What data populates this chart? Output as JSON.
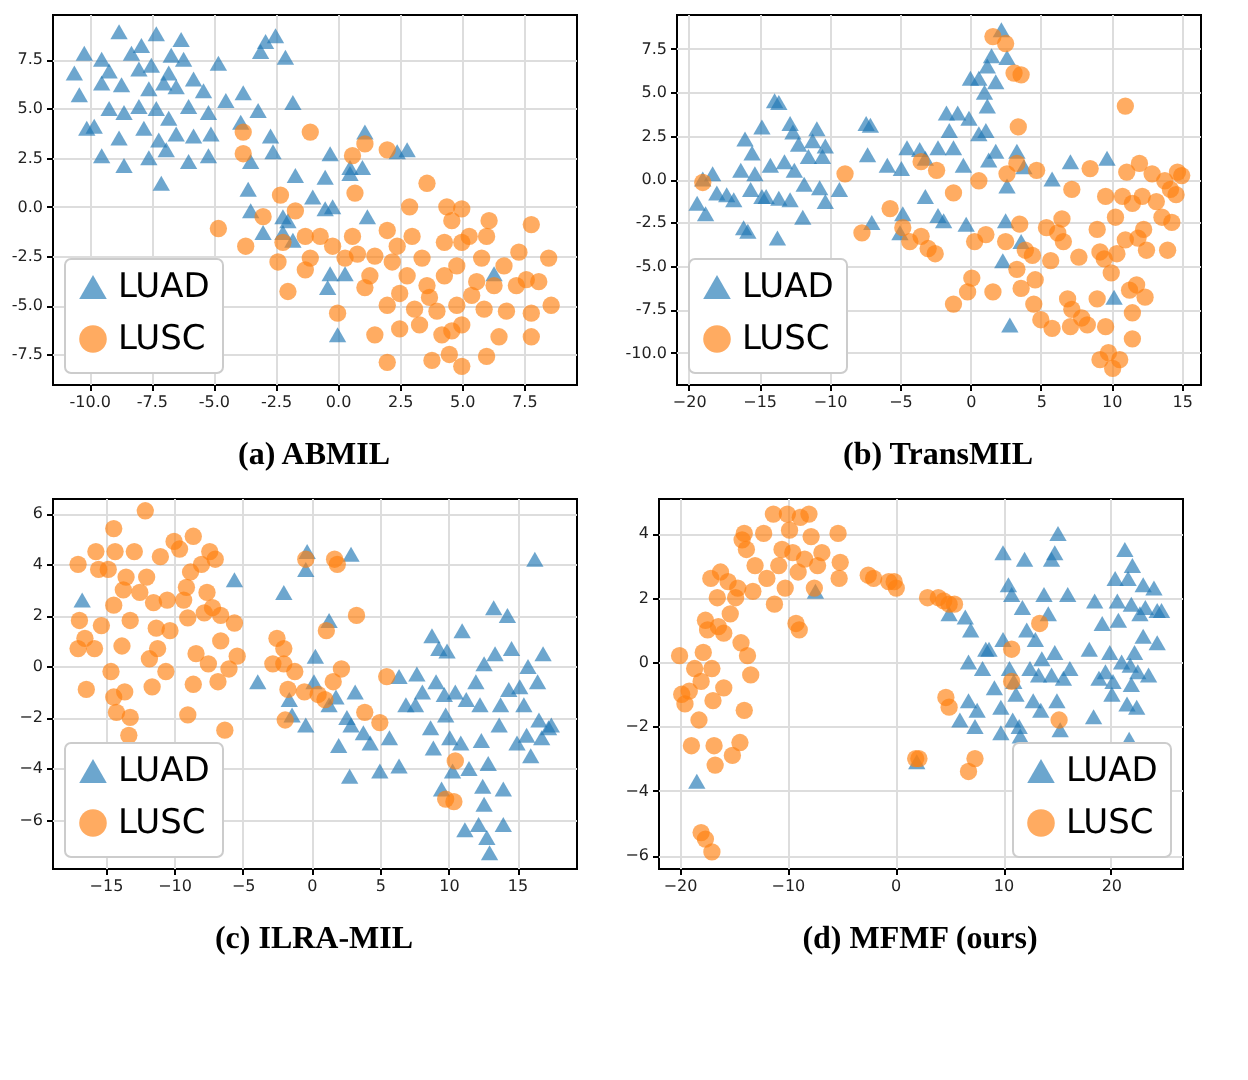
{
  "chart_data": [
    {
      "type": "scatter",
      "title": "(a) ABMIL",
      "xlim": [
        -11.5,
        9.6
      ],
      "ylim": [
        -9.0,
        9.8
      ],
      "xticks": [
        {
          "value": -10,
          "label": "-10.0"
        },
        {
          "value": -7.5,
          "label": "-7.5"
        },
        {
          "value": -5,
          "label": "-5.0"
        },
        {
          "value": -2.5,
          "label": "-2.5"
        },
        {
          "value": 0,
          "label": "0.0"
        },
        {
          "value": 2.5,
          "label": "2.5"
        },
        {
          "value": 5,
          "label": "5.0"
        },
        {
          "value": 7.5,
          "label": "7.5"
        }
      ],
      "yticks": [
        {
          "value": -7.5,
          "label": "-7.5"
        },
        {
          "value": -5,
          "label": "-5.0"
        },
        {
          "value": -2.5,
          "label": "-2.5"
        },
        {
          "value": 0,
          "label": "0.0"
        },
        {
          "value": 2.5,
          "label": "2.5"
        },
        {
          "value": 5,
          "label": "5.0"
        },
        {
          "value": 7.5,
          "label": "7.5"
        }
      ],
      "grid": true,
      "legend": "bottom left",
      "series": [
        {
          "name": "LUAD",
          "color": "#1f77b4",
          "marker": "triangle",
          "x": [
            -8.8,
            -7.3,
            -6.3,
            -10.2,
            -9.5,
            -8.3,
            -7.9,
            -6.7,
            -10.6,
            -9.2,
            -8.0,
            -7.5,
            -6.8,
            -6.2,
            -5.8,
            -10.4,
            -9.5,
            -8.7,
            -7.6,
            -7.0,
            -6.5,
            -5.4,
            -9.2,
            -8.6,
            -8.0,
            -7.3,
            -6.8,
            -6.0,
            -5.2,
            -4.5,
            -10.1,
            -9.8,
            -8.8,
            -7.8,
            -7.2,
            -6.5,
            -5.8,
            -5.1,
            -9.5,
            -8.6,
            -7.6,
            -6.9,
            -6.0,
            -5.2,
            -7.1,
            -2.9,
            -2.5,
            -3.1,
            -2.1,
            -4.8,
            -1.8,
            -3.8,
            -3.2,
            -3.9,
            -2.7,
            -2.6,
            -3.5,
            -1.7,
            -3.6,
            -0.3,
            0.5,
            1.1,
            1.0,
            2.4,
            2.8,
            -0.5,
            -1.0,
            -3.5,
            -2.2,
            -2.0,
            -0.5,
            -0.2,
            1.2,
            -3.0,
            -1.8,
            -0.3,
            -0.4,
            0.3,
            0.0,
            6.3,
            -2.2,
            0.5
          ],
          "values": [
            8.9,
            8.8,
            8.5,
            7.8,
            7.5,
            7.8,
            8.2,
            7.7,
            6.8,
            6.9,
            7.0,
            7.2,
            6.8,
            7.5,
            6.5,
            5.7,
            6.3,
            6.2,
            6.0,
            6.3,
            6.1,
            5.9,
            5.0,
            4.8,
            5.1,
            5.0,
            4.5,
            5.1,
            4.8,
            5.4,
            4.0,
            4.1,
            3.5,
            4.0,
            3.4,
            3.7,
            3.6,
            3.7,
            2.6,
            2.1,
            2.5,
            2.9,
            2.3,
            2.6,
            1.2,
            8.4,
            8.7,
            7.9,
            7.6,
            7.3,
            5.3,
            5.8,
            4.9,
            4.3,
            3.6,
            2.8,
            2.3,
            1.6,
            0.9,
            2.7,
            2.0,
            3.8,
            2.0,
            2.8,
            2.9,
            1.5,
            0.5,
            -0.2,
            -0.5,
            -0.7,
            -0.1,
            0.0,
            -0.5,
            -1.3,
            -1.7,
            -3.4,
            -4.1,
            -3.4,
            -6.5,
            -3.4,
            -1.3,
            1.7
          ]
        },
        {
          "name": "LUSC",
          "color": "#ff7f0e",
          "marker": "circle",
          "x": [
            -3.8,
            -3.8,
            -1.1,
            1.1,
            2.0,
            0.6,
            -3.7,
            -4.8,
            -2.3,
            -3.0,
            -1.7,
            -1.3,
            -2.2,
            -0.7,
            -0.2,
            -1.1,
            -1.3,
            -2.0,
            -2.4,
            0.7,
            0.6,
            0.8,
            0.3,
            0.0,
            1.1,
            1.3,
            1.5,
            2.0,
            2.2,
            2.4,
            2.9,
            3.0,
            2.5,
            2.0,
            1.5,
            2.5,
            2.8,
            3.6,
            3.4,
            3.1,
            3.3,
            2.0,
            3.8,
            3.6,
            4.0,
            4.2,
            4.3,
            4.4,
            4.6,
            4.8,
            5.0,
            5.0,
            5.3,
            5.4,
            5.0,
            4.6,
            4.5,
            5.0,
            4.8,
            5.6,
            5.8,
            6.0,
            6.1,
            6.3,
            6.0,
            6.5,
            6.8,
            6.7,
            7.2,
            7.3,
            7.6,
            7.8,
            7.8,
            7.8,
            8.1,
            8.5,
            8.6,
            3.7,
            4.3,
            5.9
          ],
          "values": [
            3.8,
            2.7,
            3.8,
            3.2,
            2.9,
            2.6,
            -2.0,
            -1.1,
            0.6,
            -0.5,
            -0.2,
            -1.5,
            -1.8,
            -1.5,
            -2.0,
            -2.6,
            -3.2,
            -4.3,
            -2.8,
            0.7,
            -1.5,
            -2.4,
            -2.6,
            -5.4,
            -4.1,
            -3.5,
            -2.5,
            -1.2,
            -2.8,
            -2.0,
            0.0,
            -1.5,
            -4.4,
            -5.0,
            -6.5,
            -6.2,
            -3.5,
            1.2,
            -2.6,
            -5.2,
            -6.0,
            -7.9,
            -7.8,
            -4.0,
            -5.3,
            -6.5,
            -1.8,
            0.0,
            -0.7,
            -3.0,
            -0.1,
            -1.8,
            -1.5,
            -4.5,
            -6.0,
            -6.3,
            -7.5,
            -8.1,
            -5.0,
            -3.8,
            -2.6,
            -1.5,
            -0.7,
            -4.0,
            -7.6,
            -6.6,
            -5.3,
            -3.0,
            -4.0,
            -2.3,
            -3.7,
            -0.9,
            -5.4,
            -6.6,
            -3.8,
            -2.6,
            -5.0,
            -4.6,
            -3.5,
            -5.2
          ]
        }
      ]
    },
    {
      "type": "scatter",
      "title": "(b) TransMIL",
      "xlim": [
        -20.9,
        16.3
      ],
      "ylim": [
        -11.8,
        9.5
      ],
      "xticks": [
        -20,
        -15,
        -10,
        -5,
        0,
        5,
        10,
        15
      ],
      "yticks": [
        {
          "value": -10,
          "label": "-10.0"
        },
        {
          "value": -7.5,
          "label": "-7.5"
        },
        {
          "value": -5,
          "label": "-5.0"
        },
        {
          "value": -2.5,
          "label": "-2.5"
        },
        {
          "value": 0,
          "label": "0.0"
        },
        {
          "value": 2.5,
          "label": "2.5"
        },
        {
          "value": 5,
          "label": "5.0"
        },
        {
          "value": 7.5,
          "label": "7.5"
        }
      ],
      "grid": true,
      "legend": "bottom left",
      "series": [
        {
          "name": "LUAD",
          "color": "#1f77b4",
          "marker": "triangle",
          "x": [
            -19.4,
            -19,
            -18.3,
            -18.8,
            -18.0,
            -17.3,
            -16.8,
            -16.3,
            -16,
            -15.5,
            -15.3,
            -15.6,
            -14.8,
            -14.5,
            -14.2,
            -13.9,
            -13.6,
            -13.2,
            -13.6,
            -12.8,
            -12.6,
            -12.2,
            -12.5,
            -11.8,
            -11.5,
            -11.2,
            -10.9,
            -10.5,
            -10.3,
            -10.7,
            -10.3,
            -9.3,
            -16.1,
            -15.8,
            -13.7,
            -11.9,
            -12.8,
            -14.8,
            -7.4,
            -7.1,
            -7.3,
            -5.9,
            -7.0,
            -4.5,
            -4.9,
            -3.6,
            -3.2,
            -2.3,
            -1.5,
            -1.7,
            -0.9,
            -0.1,
            -1.2,
            -0.5,
            -3.2,
            -2.3,
            -4.8,
            -5.0,
            0.0,
            0.6,
            1.0,
            1.2,
            1.5,
            1.8,
            2.2,
            2.6,
            1.2,
            1.1,
            1.3,
            1.8,
            3.3,
            3.8,
            2.6,
            2.5,
            3.6,
            2.8,
            5.8,
            7.1,
            9.7,
            10.2,
            -1.9,
            -0.3,
            2.3,
            0.6
          ],
          "values": [
            -1.4,
            0.0,
            0.3,
            -2.0,
            -0.8,
            -0.9,
            -1.2,
            0.5,
            2.3,
            1.5,
            0.3,
            -0.6,
            3.0,
            -1.0,
            0.8,
            4.5,
            4.4,
            1.0,
            -1.1,
            3.2,
            2.7,
            2.0,
            0.5,
            -0.3,
            1.3,
            2.2,
            2.9,
            1.3,
            1.9,
            -0.5,
            -1.3,
            -0.6,
            -2.8,
            -3.0,
            -3.4,
            -2.2,
            -1.2,
            -1.0,
            3.2,
            3.1,
            1.4,
            0.8,
            -2.5,
            1.8,
            0.6,
            1.7,
            1.2,
            1.8,
            2.8,
            3.8,
            3.8,
            3.5,
            1.8,
            0.8,
            -1.0,
            -2.1,
            -2.0,
            -3.1,
            5.8,
            5.8,
            5.0,
            6.5,
            7.1,
            5.6,
            8.6,
            7.0,
            4.2,
            2.8,
            1.1,
            1.6,
            1.6,
            0.7,
            -0.4,
            -2.4,
            -3.6,
            -8.4,
            0.0,
            1.0,
            1.2,
            -6.8,
            -2.4,
            -2.6,
            -4.7,
            2.6
          ]
        },
        {
          "name": "LUSC",
          "color": "#ff7f0e",
          "marker": "circle",
          "x": [
            -19.0,
            -8.9,
            -7.7,
            -5.7,
            -4.8,
            -4.3,
            -3.5,
            -3.5,
            -2.4,
            -2.5,
            -3.0,
            -1.2,
            -1.2,
            -0.2,
            0.1,
            0.3,
            0.6,
            1.1,
            1.6,
            1.6,
            2.5,
            3.1,
            3.6,
            3.4,
            3.3,
            2.6,
            2.5,
            3.5,
            3.3,
            3.6,
            4.4,
            4.6,
            4.7,
            3.9,
            4.5,
            5.0,
            5.7,
            5.4,
            5.8,
            6.2,
            6.5,
            6.6,
            6.9,
            7.2,
            7.1,
            7.2,
            8.5,
            7.7,
            7.9,
            8.3,
            9.0,
            9.0,
            9.2,
            9.5,
            9.6,
            9.6,
            9.2,
            9.8,
            10.1,
            10.6,
            10.0,
            10.4,
            10.8,
            11.0,
            11.0,
            11.3,
            11.1,
            11.5,
            11.5,
            11.5,
            12.0,
            12.2,
            12.3,
            12.5,
            12.4,
            11.8,
            12.9,
            13.2,
            13.6,
            13.8,
            14.0,
            14.3,
            14.2,
            14.6,
            14.7,
            15.0,
            10.3,
            11.9
          ],
          "values": [
            -0.2,
            0.3,
            -3.1,
            -1.7,
            -2.8,
            -3.6,
            -3.3,
            1.0,
            0.5,
            -4.3,
            -4.0,
            -0.8,
            -7.2,
            -6.5,
            -5.7,
            -3.6,
            -0.1,
            -3.2,
            -6.5,
            8.2,
            7.8,
            6.1,
            6.0,
            3.0,
            0.9,
            0.3,
            -3.6,
            -2.6,
            -5.2,
            -6.3,
            -4.4,
            -5.8,
            0.5,
            -4.1,
            -7.2,
            -8.1,
            -4.7,
            -2.8,
            -8.6,
            -3.1,
            -2.3,
            -3.6,
            -6.9,
            -7.5,
            -8.5,
            -0.6,
            0.6,
            -4.5,
            -8.0,
            -8.4,
            -6.9,
            -2.9,
            -4.2,
            -4.6,
            -1.0,
            -8.5,
            -10.4,
            -10.0,
            -10.9,
            -10.4,
            -5.4,
            -4.3,
            -1.0,
            4.2,
            -3.5,
            -6.4,
            0.4,
            -1.4,
            -7.7,
            -9.2,
            0.9,
            -1.0,
            -2.9,
            -4.1,
            -6.8,
            -6.1,
            0.3,
            -1.3,
            -2.2,
            -0.1,
            -4.1,
            -2.5,
            -0.6,
            -0.9,
            0.4,
            0.2,
            -2.2,
            -3.4
          ]
        }
      ]
    },
    {
      "type": "scatter",
      "title": "(c) ILRA-MIL",
      "xlim": [
        -18.9,
        19.3
      ],
      "ylim": [
        -7.9,
        6.6
      ],
      "xticks": [
        -15,
        -10,
        -5,
        0,
        5,
        10,
        15
      ],
      "yticks": [
        -6,
        -4,
        -2,
        0,
        2,
        4,
        6
      ],
      "grid": true,
      "legend": "bottom left",
      "series": [
        {
          "name": "LUAD",
          "color": "#1f77b4",
          "marker": "triangle",
          "x": [
            -16.7,
            -5.6,
            -2.0,
            -0.3,
            -0.4,
            2.9,
            1.3,
            -3.9,
            -1.6,
            -1.4,
            -0.4,
            0.3,
            0.2,
            1.3,
            1.8,
            2.6,
            2.9,
            3.2,
            2.0,
            2.8,
            3.8,
            4.3,
            5.0,
            5.7,
            6.4,
            6.4,
            6.9,
            7.7,
            7.6,
            8.1,
            8.8,
            9.3,
            9.1,
            8.7,
            8.9,
            9.7,
            9.9,
            9.8,
            9.5,
            10.1,
            10.3,
            10.5,
            11.0,
            10.9,
            11.5,
            11.2,
            11.3,
            12.0,
            12.3,
            12.6,
            12.4,
            12.5,
            12.6,
            12.2,
            12.8,
            13.0,
            12.9,
            13.3,
            13.7,
            13.4,
            13.8,
            14.0,
            14.3,
            14.4,
            14.6,
            14.0,
            15.0,
            15.5,
            15.7,
            15.8,
            16.3,
            16.5,
            16.0,
            16.6,
            16.9,
            17.3,
            17.5,
            16.8,
            15.2
          ],
          "values": [
            2.6,
            3.4,
            2.9,
            4.5,
            3.8,
            4.4,
            1.8,
            -0.6,
            -1.3,
            -1.9,
            -2.3,
            0.4,
            -0.6,
            -1.5,
            -1.2,
            -2.0,
            -2.3,
            -1.0,
            -3.1,
            -4.3,
            -2.6,
            -3.0,
            -4.1,
            -2.8,
            -3.9,
            -0.4,
            -1.5,
            -0.3,
            -1.5,
            -1.0,
            1.2,
            0.7,
            -0.6,
            -2.4,
            -3.2,
            -1.1,
            0.6,
            -1.9,
            -4.8,
            -2.8,
            -4.1,
            -1.0,
            1.4,
            -3.0,
            -4.0,
            -6.4,
            -1.3,
            -0.6,
            -1.5,
            0.1,
            -2.9,
            -4.7,
            -5.4,
            -6.2,
            -6.7,
            -7.3,
            -3.8,
            2.3,
            -2.3,
            0.5,
            -1.5,
            -4.8,
            2.0,
            -0.9,
            0.7,
            -6.2,
            -3.0,
            -1.5,
            -2.7,
            0.0,
            4.2,
            -0.6,
            -3.5,
            -2.1,
            0.5,
            -2.4,
            -2.3,
            -2.8,
            -0.8
          ]
        },
        {
          "name": "LUSC",
          "color": "#ff7f0e",
          "marker": "circle",
          "x": [
            -17.0,
            -16.9,
            -17.0,
            -16.5,
            -16.4,
            -15.8,
            -15.7,
            -15.5,
            -15.3,
            -14.8,
            -14.4,
            -14.6,
            -14.4,
            -14.2,
            -14.3,
            -14.4,
            -13.7,
            -13.5,
            -13.8,
            -13.6,
            -13.2,
            -13.3,
            -13.2,
            -12.9,
            -12.5,
            -12.1,
            -12.0,
            -11.8,
            -11.6,
            -11.5,
            -11.3,
            -11.2,
            -11.0,
            -10.6,
            -10.5,
            -10.3,
            -10.0,
            -9.6,
            -9.3,
            -9.0,
            -9.1,
            -8.8,
            -9.0,
            -8.6,
            -8.4,
            -8.6,
            -8.0,
            -7.8,
            -7.6,
            -7.5,
            -7.4,
            -7.0,
            -7.2,
            -6.8,
            -6.6,
            -6.6,
            -6.3,
            -6.0,
            -5.6,
            -5.4,
            -2.0,
            -2.5,
            -2.0,
            -1.7,
            -1.9,
            -1.2,
            -0.4,
            -0.5,
            0.5,
            1.1,
            1.0,
            1.7,
            1.9,
            1.6,
            2.2,
            3.3,
            3.9,
            5.0,
            5.5,
            10.5,
            9.8,
            10.4,
            -2.8
          ],
          "values": [
            4.0,
            1.8,
            0.7,
            1.1,
            -0.9,
            0.7,
            4.5,
            3.8,
            1.6,
            3.8,
            2.4,
            -0.2,
            -1.2,
            -1.8,
            4.5,
            5.4,
            3.0,
            3.5,
            0.8,
            -1.0,
            1.8,
            -2.7,
            -2.0,
            4.5,
            2.9,
            6.1,
            3.5,
            0.3,
            -0.8,
            2.5,
            1.5,
            0.7,
            4.3,
            -0.2,
            2.6,
            1.4,
            4.9,
            4.6,
            2.6,
            1.9,
            3.1,
            3.7,
            -1.9,
            5.1,
            0.5,
            -0.7,
            4.0,
            2.1,
            2.9,
            0.1,
            4.5,
            4.2,
            2.3,
            -0.6,
            2.0,
            1.0,
            -2.5,
            -0.1,
            1.7,
            0.4,
            0.1,
            1.1,
            0.7,
            -0.9,
            -2.1,
            -0.2,
            4.2,
            -1.0,
            -1.1,
            1.4,
            -1.3,
            4.2,
            4.0,
            -0.6,
            -0.1,
            2.0,
            -1.8,
            -2.2,
            -0.4,
            -3.7,
            -5.2,
            -5.3,
            0.1
          ]
        }
      ]
    },
    {
      "type": "scatter",
      "title": "(d) MFMF (ours)",
      "xlim": [
        -22.0,
        26.6
      ],
      "ylim": [
        -6.4,
        5.1
      ],
      "xticks": [
        -20,
        -10,
        0,
        10,
        20
      ],
      "yticks": [
        -6,
        -4,
        -2,
        0,
        2,
        4
      ],
      "grid": true,
      "legend": "bottom right",
      "series": [
        {
          "name": "LUAD",
          "color": "#1f77b4",
          "marker": "triangle",
          "x": [
            -18.4,
            -7.4,
            2.0,
            5.0,
            6.5,
            7.0,
            6.8,
            6.0,
            6.8,
            7.6,
            7.4,
            8.1,
            8.4,
            8.7,
            9.2,
            9.8,
            10.0,
            10.0,
            10.5,
            10.8,
            10.6,
            11.0,
            11.2,
            10.9,
            11.5,
            11.6,
            12.0,
            11.8,
            12.2,
            12.5,
            13.0,
            12.8,
            13.3,
            13.6,
            13.8,
            14.5,
            14.8,
            14.2,
            14.5,
            14.8,
            15.0,
            15.3,
            15.1,
            16.0,
            16.2,
            15.6,
            18.0,
            18.5,
            18.9,
            19.2,
            19.5,
            19.9,
            20.2,
            20.4,
            20.6,
            20.7,
            21.0,
            21.3,
            21.6,
            21.8,
            21.9,
            22.0,
            22.2,
            22.5,
            22.7,
            23.0,
            23.2,
            23.0,
            23.5,
            24.0,
            24.3,
            24.3,
            24.7,
            21.9,
            21.5,
            22.4,
            21.7,
            20.1,
            18.4,
            9.8,
            13.5
          ],
          "values": [
            -3.7,
            2.2,
            -3.1,
            1.5,
            1.4,
            1.0,
            0.0,
            -1.8,
            -1.2,
            -1.5,
            -2.0,
            -0.2,
            0.4,
            0.4,
            -0.8,
            -1.4,
            0.7,
            3.4,
            2.4,
            2.1,
            -0.2,
            -0.6,
            -1.0,
            -1.8,
            -2.0,
            -2.3,
            3.2,
            1.7,
            1.0,
            -0.2,
            0.7,
            -1.2,
            -0.4,
            0.1,
            2.1,
            3.2,
            3.4,
            1.5,
            -0.4,
            0.3,
            -1.2,
            -2.1,
            4.0,
            2.1,
            -0.2,
            -0.5,
            0.4,
            1.9,
            -0.5,
            1.2,
            -0.3,
            0.3,
            -0.6,
            2.6,
            1.9,
            1.3,
            0.0,
            3.5,
            2.6,
            -0.1,
            1.8,
            3.0,
            0.3,
            -0.3,
            1.5,
            2.4,
            1.7,
            0.8,
            -0.4,
            2.3,
            0.6,
            1.6,
            1.6,
            -0.7,
            -1.3,
            -1.4,
            -2.4,
            -1.0,
            -1.7,
            -2.2,
            -1.5
          ]
        },
        {
          "name": "LUSC",
          "color": "#ff7f0e",
          "marker": "circle",
          "x": [
            -20.0,
            -19.8,
            -19.5,
            -19.1,
            -18.6,
            -18.0,
            -18.2,
            -18.9,
            -17.8,
            -17.6,
            -17.4,
            -17.1,
            -17.0,
            -16.9,
            -16.8,
            -16.7,
            -16.5,
            -16.4,
            -16.2,
            -15.9,
            -15.9,
            -15.5,
            -15.3,
            -15.1,
            -14.8,
            -14.6,
            -14.4,
            -14.3,
            -14.2,
            -14.0,
            -13.8,
            -13.7,
            -13.4,
            -14.0,
            -13.2,
            -13.0,
            -12.2,
            -11.9,
            -11.3,
            -11.2,
            -10.8,
            -10.5,
            -10.2,
            -10.0,
            -9.8,
            -9.5,
            -9.2,
            -8.9,
            -9.0,
            -8.8,
            -8.4,
            -8.0,
            -7.8,
            -7.2,
            -6.8,
            -5.3,
            -5.1,
            -5.2,
            -7.5,
            -2.5,
            -2.0,
            -0.6,
            0.1,
            -0.1,
            3.0,
            4.0,
            4.5,
            5.0,
            5.5,
            4.7,
            5.0,
            2.2,
            1.9,
            6.8,
            7.4,
            10.8,
            10.8,
            13.4,
            15.2,
            -18.0,
            -17.6,
            -17.0
          ],
          "values": [
            0.2,
            -1.0,
            -1.3,
            -0.9,
            -0.2,
            -0.6,
            -1.8,
            -2.6,
            0.3,
            1.3,
            1.0,
            2.6,
            -0.2,
            -1.2,
            -2.6,
            -3.2,
            2.0,
            1.1,
            2.8,
            0.9,
            -0.8,
            2.5,
            1.5,
            -2.9,
            2.0,
            2.3,
            -2.5,
            0.6,
            3.8,
            4.0,
            3.5,
            0.2,
            -0.4,
            -1.5,
            2.2,
            3.0,
            4.0,
            2.6,
            4.6,
            1.8,
            3.0,
            3.5,
            2.3,
            4.6,
            4.1,
            3.4,
            1.2,
            1.0,
            2.8,
            4.5,
            3.2,
            4.6,
            3.9,
            3.0,
            3.4,
            4.0,
            3.1,
            2.6,
            2.3,
            2.7,
            2.6,
            2.5,
            2.3,
            2.5,
            2.0,
            2.0,
            1.9,
            1.8,
            1.8,
            -1.1,
            -1.4,
            -3.0,
            -3.0,
            -3.4,
            -3.0,
            0.4,
            -0.6,
            1.2,
            -1.8,
            -5.3,
            -5.5,
            -5.9
          ]
        }
      ]
    }
  ]
}
